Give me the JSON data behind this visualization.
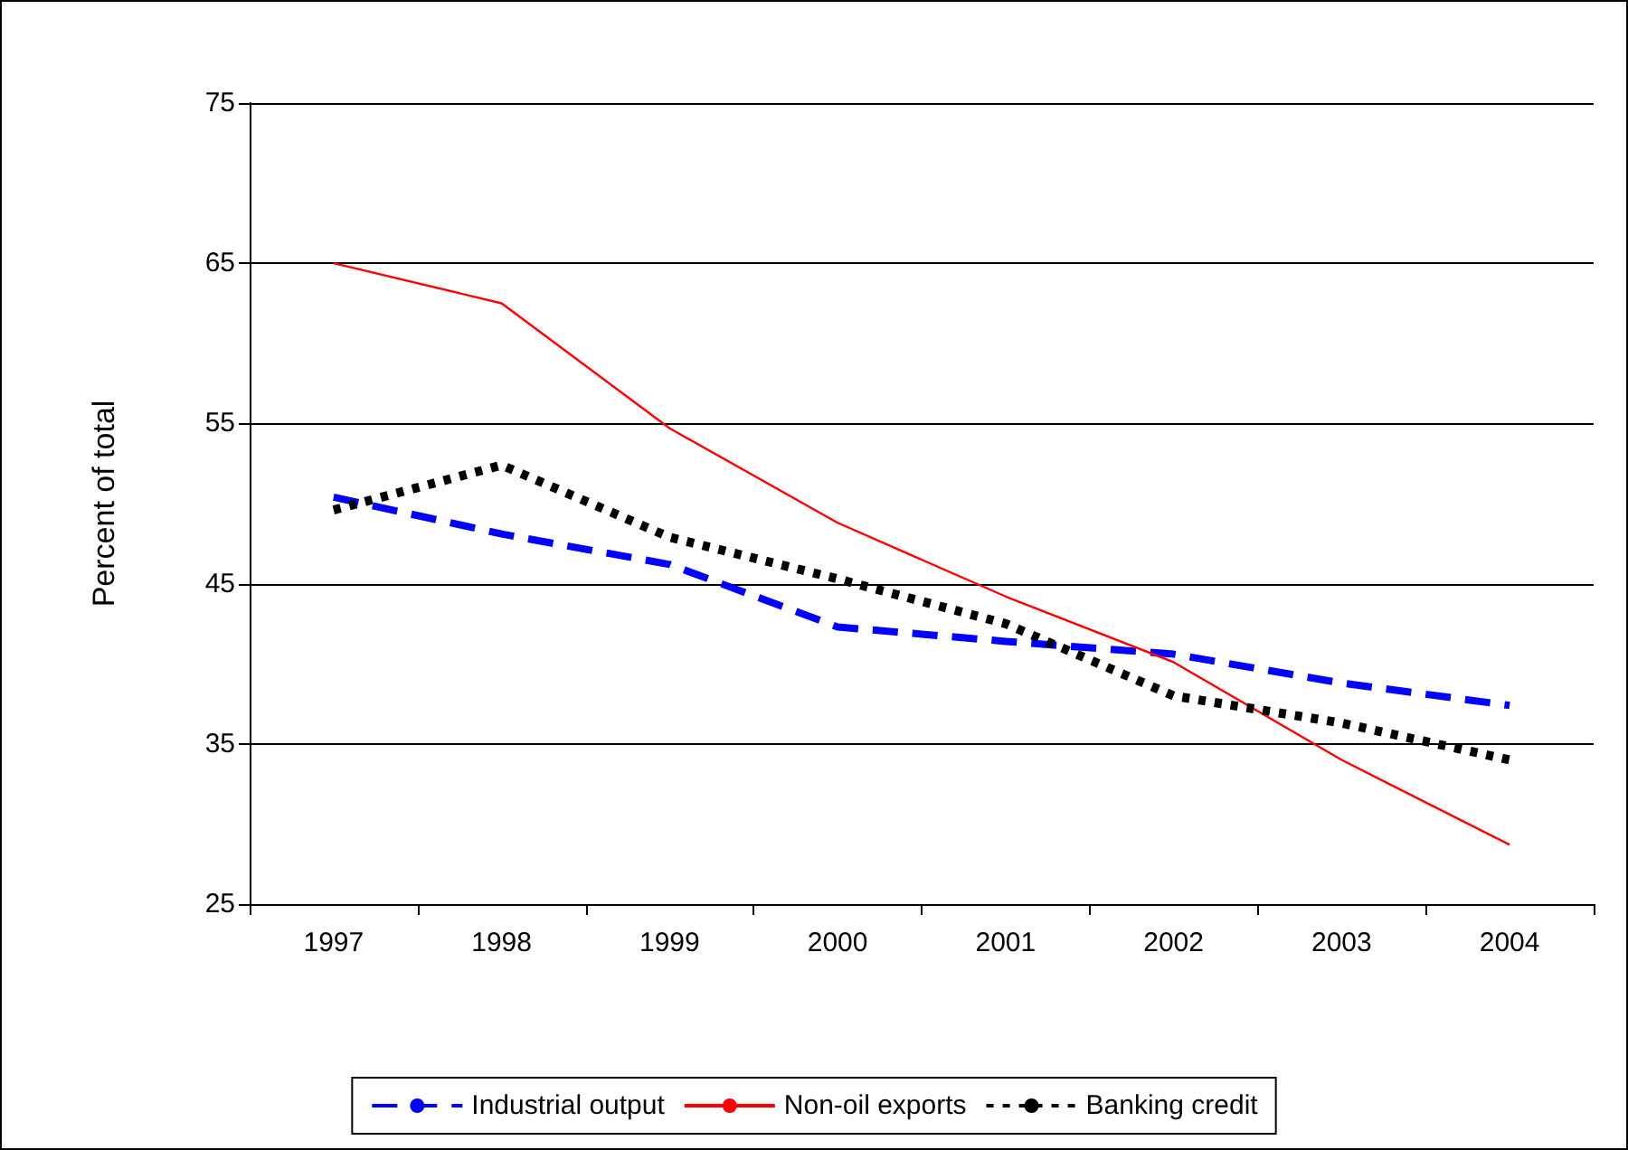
{
  "chart_data": {
    "type": "line",
    "ylabel": "Percent of total",
    "categories": [
      "1997",
      "1998",
      "1999",
      "2000",
      "2001",
      "2002",
      "2003",
      "2004"
    ],
    "series": [
      {
        "name": "Industrial output",
        "color": "#0000ff",
        "line_style": "dashed",
        "values": [
          50.4,
          48.1,
          46.2,
          42.3,
          41.4,
          40.6,
          38.8,
          37.4
        ]
      },
      {
        "name": "Non-oil exports",
        "color": "#ff0000",
        "line_style": "solid",
        "values": [
          65,
          62.5,
          54.7,
          48.8,
          44.2,
          40.1,
          34,
          28.7
        ]
      },
      {
        "name": "Banking credit",
        "color": "#000000",
        "line_style": "dotted",
        "values": [
          49.6,
          52.4,
          47.9,
          45.3,
          42.5,
          38,
          36.3,
          34
        ]
      }
    ],
    "ylim": [
      25,
      75
    ],
    "yticks": [
      25,
      35,
      45,
      55,
      65,
      75
    ],
    "grid": "y",
    "legend": "bottom",
    "marker": "none"
  }
}
